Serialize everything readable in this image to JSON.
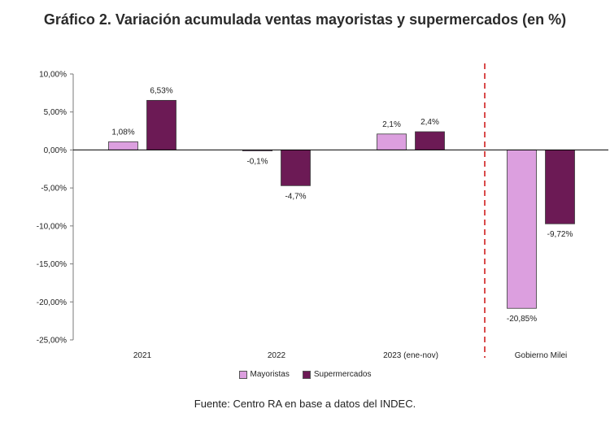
{
  "title": "Gráfico 2. Variación acumulada ventas mayoristas y supermercados (en %)",
  "source": "Fuente: Centro RA en base a datos del INDEC.",
  "colors": {
    "mayoristas": "#dc9fdf",
    "supermercados": "#6c1a55",
    "divider": "#d94b4b",
    "axis": "#000000"
  },
  "chart_data": {
    "type": "bar",
    "categories": [
      "2021",
      "2022",
      "2023 (ene-nov)",
      "Gobierno Milei"
    ],
    "series": [
      {
        "name": "Mayoristas",
        "values": [
          1.08,
          -0.1,
          2.1,
          -20.85
        ],
        "labels": [
          "1,08%",
          "-0,1%",
          "2,1%",
          "-20,85%"
        ]
      },
      {
        "name": "Supermercados",
        "values": [
          6.53,
          -4.7,
          2.4,
          -9.72
        ],
        "labels": [
          "6,53%",
          "-4,7%",
          "2,4%",
          "-9,72%"
        ]
      }
    ],
    "ylim": [
      -25,
      10
    ],
    "yticks": [
      10,
      5,
      0,
      -5,
      -10,
      -15,
      -20,
      -25
    ],
    "ytick_labels": [
      "10,00%",
      "5,00%",
      "0,00%",
      "-5,00%",
      "-10,00%",
      "-15,00%",
      "-20,00%",
      "-25,00%"
    ],
    "divider_after_category": 2,
    "legend": [
      "Mayoristas",
      "Supermercados"
    ],
    "xlabel": "",
    "ylabel": ""
  }
}
